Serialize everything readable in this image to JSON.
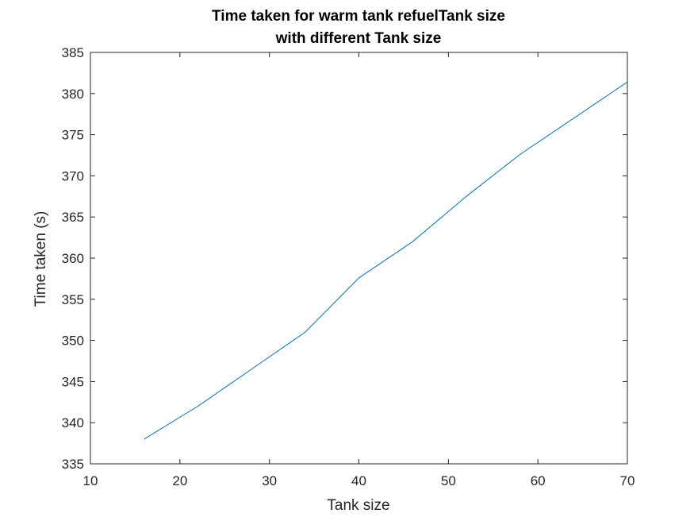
{
  "chart_data": {
    "type": "line",
    "title_lines": [
      "Time taken for warm tank refuelTank size",
      "with different Tank size"
    ],
    "xlabel": "Tank size",
    "ylabel": "Time taken (s)",
    "xlim": [
      10,
      70
    ],
    "ylim": [
      335,
      385
    ],
    "xticks": [
      10,
      20,
      30,
      40,
      50,
      60,
      70
    ],
    "yticks": [
      335,
      340,
      345,
      350,
      355,
      360,
      365,
      370,
      375,
      380,
      385
    ],
    "grid": false,
    "series": [
      {
        "name": "warm tank refuel",
        "color": "#0072BD",
        "x": [
          16,
          22,
          28,
          34,
          40,
          46,
          52,
          58,
          64,
          70
        ],
        "y": [
          338,
          342,
          346.5,
          351,
          357.6,
          362,
          367.5,
          372.6,
          377,
          381.4
        ]
      }
    ]
  },
  "colors": {
    "axis": "#262626",
    "background": "#ffffff"
  }
}
